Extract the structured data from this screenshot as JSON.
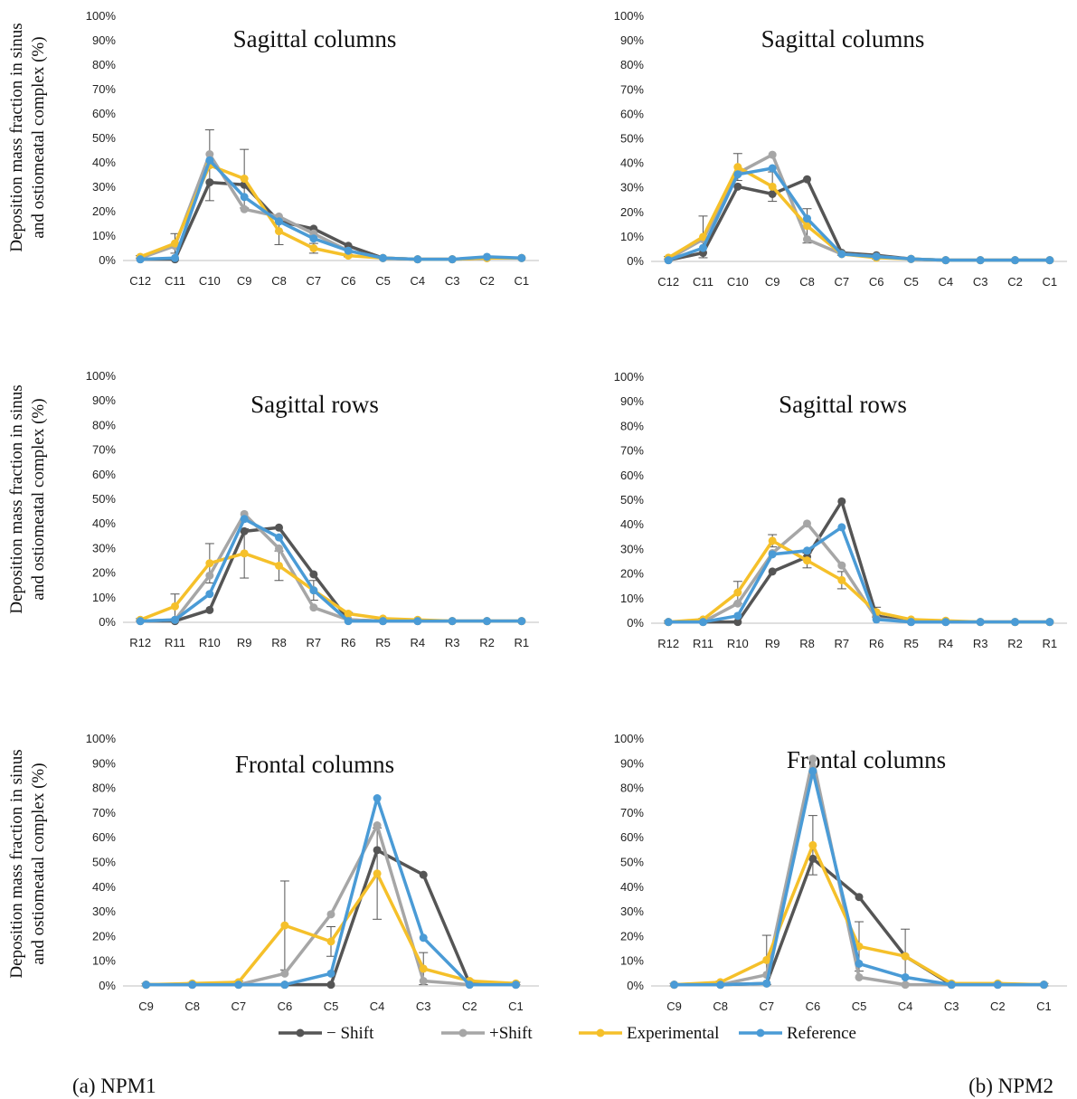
{
  "colors": {
    "minus_shift": "#555555",
    "plus_shift": "#a6a6a6",
    "experimental": "#f5c02a",
    "reference": "#4a9bd6"
  },
  "y_axis_label_line1": "Deposition mass fraction in sinus",
  "y_axis_label_line2": "and ostiomeatal complex (%)",
  "legend": [
    {
      "key": "minus_shift",
      "label": "− Shift"
    },
    {
      "key": "plus_shift",
      "label": "+Shift"
    },
    {
      "key": "experimental",
      "label": "Experimental"
    },
    {
      "key": "reference",
      "label": "Reference"
    }
  ],
  "captions": {
    "left": "(a) NPM1",
    "right": "(b) NPM2"
  },
  "chart_data": [
    {
      "type": "line",
      "title": "Sagittal columns",
      "group": "NPM1",
      "ylim": [
        0,
        100
      ],
      "yticks": [
        "0%",
        "10%",
        "20%",
        "30%",
        "40%",
        "50%",
        "60%",
        "70%",
        "80%",
        "90%",
        "100%"
      ],
      "categories": [
        "C12",
        "C11",
        "C10",
        "C9",
        "C8",
        "C7",
        "C6",
        "C5",
        "C4",
        "C3",
        "C2",
        "C1"
      ],
      "series": [
        {
          "name": "− Shift",
          "key": "minus_shift",
          "values": [
            0.5,
            0.5,
            32,
            31,
            16,
            13,
            6,
            1,
            0.5,
            0.5,
            1,
            1
          ]
        },
        {
          "name": "+Shift",
          "key": "plus_shift",
          "values": [
            1,
            6,
            43.5,
            21,
            18,
            11,
            4,
            1,
            0.5,
            0.5,
            1,
            1
          ]
        },
        {
          "name": "Experimental",
          "key": "experimental",
          "values": [
            1.5,
            7,
            39,
            33.5,
            12,
            5,
            2,
            1,
            0.5,
            0.5,
            1,
            1
          ]
        },
        {
          "name": "Reference",
          "key": "reference",
          "values": [
            0.5,
            1,
            41,
            26,
            16,
            9,
            4,
            1,
            0.5,
            0.5,
            1.5,
            1
          ]
        }
      ],
      "error_bars": {
        "series": "experimental",
        "errors": [
          0.5,
          4,
          14.5,
          12,
          5.5,
          2,
          0.5,
          0,
          0,
          0,
          0,
          0
        ]
      }
    },
    {
      "type": "line",
      "title": "Sagittal columns",
      "group": "NPM2",
      "ylim": [
        0,
        100
      ],
      "yticks": [
        "0%",
        "10%",
        "20%",
        "30%",
        "40%",
        "50%",
        "60%",
        "70%",
        "80%",
        "90%",
        "100%"
      ],
      "categories": [
        "C12",
        "C11",
        "C10",
        "C9",
        "C8",
        "C7",
        "C6",
        "C5",
        "C4",
        "C3",
        "C2",
        "C1"
      ],
      "series": [
        {
          "name": "− Shift",
          "key": "minus_shift",
          "values": [
            0.5,
            3.5,
            30.5,
            27.5,
            33.5,
            3.5,
            2.5,
            1,
            0.5,
            0.5,
            0.5,
            0.5
          ]
        },
        {
          "name": "+Shift",
          "key": "plus_shift",
          "values": [
            1,
            9,
            36,
            43.5,
            9,
            3,
            2,
            1,
            0.5,
            0.5,
            0.5,
            0.5
          ]
        },
        {
          "name": "Experimental",
          "key": "experimental",
          "values": [
            1.5,
            10,
            38.5,
            30.5,
            14.5,
            3,
            1.5,
            1,
            0.5,
            0.5,
            0.5,
            0.5
          ]
        },
        {
          "name": "Reference",
          "key": "reference",
          "values": [
            0.5,
            5.5,
            35.5,
            38,
            17.5,
            3,
            2,
            1,
            0.5,
            0.5,
            0.5,
            0.5
          ]
        }
      ],
      "error_bars": {
        "series": "experimental",
        "errors": [
          0.5,
          8.5,
          5.5,
          6,
          7,
          0.5,
          0.5,
          0,
          0,
          0,
          0,
          0
        ]
      }
    },
    {
      "type": "line",
      "title": "Sagittal rows",
      "group": "NPM1",
      "ylim": [
        0,
        100
      ],
      "yticks": [
        "0%",
        "10%",
        "20%",
        "30%",
        "40%",
        "50%",
        "60%",
        "70%",
        "80%",
        "90%",
        "100%"
      ],
      "categories": [
        "R12",
        "R11",
        "R10",
        "R9",
        "R8",
        "R7",
        "R6",
        "R5",
        "R4",
        "R3",
        "R2",
        "R1"
      ],
      "series": [
        {
          "name": "− Shift",
          "key": "minus_shift",
          "values": [
            0.5,
            0.5,
            5,
            37,
            38.5,
            19.5,
            1,
            0.5,
            0.5,
            0.5,
            0.5,
            0.5
          ]
        },
        {
          "name": "+Shift",
          "key": "plus_shift",
          "values": [
            0.5,
            1,
            19,
            44,
            30,
            6,
            1,
            0.5,
            0.5,
            0.5,
            0.5,
            0.5
          ]
        },
        {
          "name": "Experimental",
          "key": "experimental",
          "values": [
            1,
            6.5,
            24,
            28,
            23,
            13,
            3.5,
            1.5,
            1,
            0.5,
            0.5,
            0.5
          ]
        },
        {
          "name": "Reference",
          "key": "reference",
          "values": [
            0.5,
            1,
            11.5,
            42,
            34.5,
            13,
            0.5,
            0.5,
            0.5,
            0.5,
            0.5,
            0.5
          ]
        }
      ],
      "error_bars": {
        "series": "experimental",
        "errors": [
          0.5,
          5,
          8,
          10,
          6,
          4,
          0.5,
          0,
          0,
          0,
          0,
          0
        ]
      }
    },
    {
      "type": "line",
      "title": "Sagittal rows",
      "group": "NPM2",
      "ylim": [
        0,
        100
      ],
      "yticks": [
        "0%",
        "10%",
        "20%",
        "30%",
        "40%",
        "50%",
        "60%",
        "70%",
        "80%",
        "90%",
        "100%"
      ],
      "categories": [
        "R12",
        "R11",
        "R10",
        "R9",
        "R8",
        "R7",
        "R6",
        "R5",
        "R4",
        "R3",
        "R2",
        "R1"
      ],
      "series": [
        {
          "name": "− Shift",
          "key": "minus_shift",
          "values": [
            0.5,
            0.5,
            0.5,
            21,
            27,
            49.5,
            3,
            0.5,
            0.5,
            0.5,
            0.5,
            0.5
          ]
        },
        {
          "name": "+Shift",
          "key": "plus_shift",
          "values": [
            0.5,
            0.5,
            8,
            28.5,
            40.5,
            23.5,
            2,
            0.5,
            0.5,
            0.5,
            0.5,
            0.5
          ]
        },
        {
          "name": "Experimental",
          "key": "experimental",
          "values": [
            0.5,
            1.5,
            12.5,
            33.5,
            25.5,
            17.5,
            4.5,
            1.5,
            1,
            0.5,
            0.5,
            0.5
          ]
        },
        {
          "name": "Reference",
          "key": "reference",
          "values": [
            0.5,
            0.5,
            3,
            28,
            29.5,
            39,
            1.5,
            0.5,
            0.5,
            0.5,
            0.5,
            0.5
          ]
        }
      ],
      "error_bars": {
        "series": "experimental",
        "errors": [
          0.5,
          0.5,
          4.5,
          2.5,
          3,
          3.5,
          2,
          0,
          0,
          0,
          0,
          0
        ]
      }
    },
    {
      "type": "line",
      "title": "Frontal columns",
      "group": "NPM1",
      "ylim": [
        0,
        100
      ],
      "yticks": [
        "0%",
        "10%",
        "20%",
        "30%",
        "40%",
        "50%",
        "60%",
        "70%",
        "80%",
        "90%",
        "100%"
      ],
      "categories": [
        "C9",
        "C8",
        "C7",
        "C6",
        "C5",
        "C4",
        "C3",
        "C2",
        "C1"
      ],
      "series": [
        {
          "name": "− Shift",
          "key": "minus_shift",
          "values": [
            0.5,
            0.5,
            0.5,
            0.5,
            0.5,
            55,
            45,
            1,
            0.5
          ]
        },
        {
          "name": "+Shift",
          "key": "plus_shift",
          "values": [
            0.5,
            0.5,
            0.5,
            5,
            29,
            65,
            2,
            0.5,
            0.5
          ]
        },
        {
          "name": "Experimental",
          "key": "experimental",
          "values": [
            0.5,
            1,
            1.5,
            24.5,
            18,
            45.5,
            7,
            2,
            1
          ]
        },
        {
          "name": "Reference",
          "key": "reference",
          "values": [
            0.5,
            0.5,
            0.5,
            0.5,
            5,
            76,
            19.5,
            0.5,
            0.5
          ]
        }
      ],
      "error_bars": {
        "series": "experimental",
        "errors": [
          0.5,
          0.5,
          0.5,
          18,
          6,
          18.5,
          6.5,
          0.5,
          0.5
        ]
      }
    },
    {
      "type": "line",
      "title": "Frontal columns",
      "group": "NPM2",
      "ylim": [
        0,
        100
      ],
      "yticks": [
        "0%",
        "10%",
        "20%",
        "30%",
        "40%",
        "50%",
        "60%",
        "70%",
        "80%",
        "90%",
        "100%"
      ],
      "categories": [
        "C9",
        "C8",
        "C7",
        "C6",
        "C5",
        "C4",
        "C3",
        "C2",
        "C1"
      ],
      "series": [
        {
          "name": "− Shift",
          "key": "minus_shift",
          "values": [
            0.5,
            0.5,
            1,
            51.5,
            36,
            12,
            0.5,
            0.5,
            0.5
          ]
        },
        {
          "name": "+Shift",
          "key": "plus_shift",
          "values": [
            0.5,
            0.5,
            4.5,
            92,
            3.5,
            0.5,
            0.5,
            0.5,
            0.5
          ]
        },
        {
          "name": "Experimental",
          "key": "experimental",
          "values": [
            0.5,
            1.5,
            10.5,
            57,
            16,
            12,
            1,
            1,
            0.5
          ]
        },
        {
          "name": "Reference",
          "key": "reference",
          "values": [
            0.5,
            0.5,
            1,
            87,
            9,
            3.5,
            0.5,
            0.5,
            0.5
          ]
        }
      ],
      "error_bars": {
        "series": "experimental",
        "errors": [
          0.5,
          0.5,
          10,
          12,
          10,
          11,
          0.5,
          0.5,
          0.5
        ]
      }
    }
  ]
}
